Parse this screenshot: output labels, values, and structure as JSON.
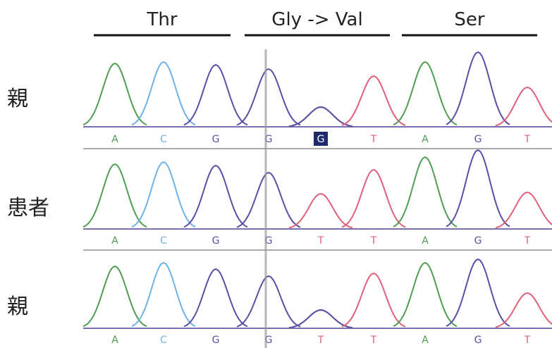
{
  "codons": [
    {
      "label": "Thr"
    },
    {
      "label": "Gly -> Val"
    },
    {
      "label": "Ser"
    }
  ],
  "rows": [
    {
      "label": "親",
      "bases": [
        "A",
        "C",
        "G",
        "G",
        "G",
        "T",
        "A",
        "G",
        "T"
      ]
    },
    {
      "label": "患者",
      "bases": [
        "A",
        "C",
        "G",
        "G",
        "T",
        "T",
        "A",
        "G",
        "T"
      ]
    },
    {
      "label": "親",
      "bases": [
        "A",
        "C",
        "G",
        "G",
        "T",
        "T",
        "A",
        "G",
        "T"
      ]
    }
  ]
}
